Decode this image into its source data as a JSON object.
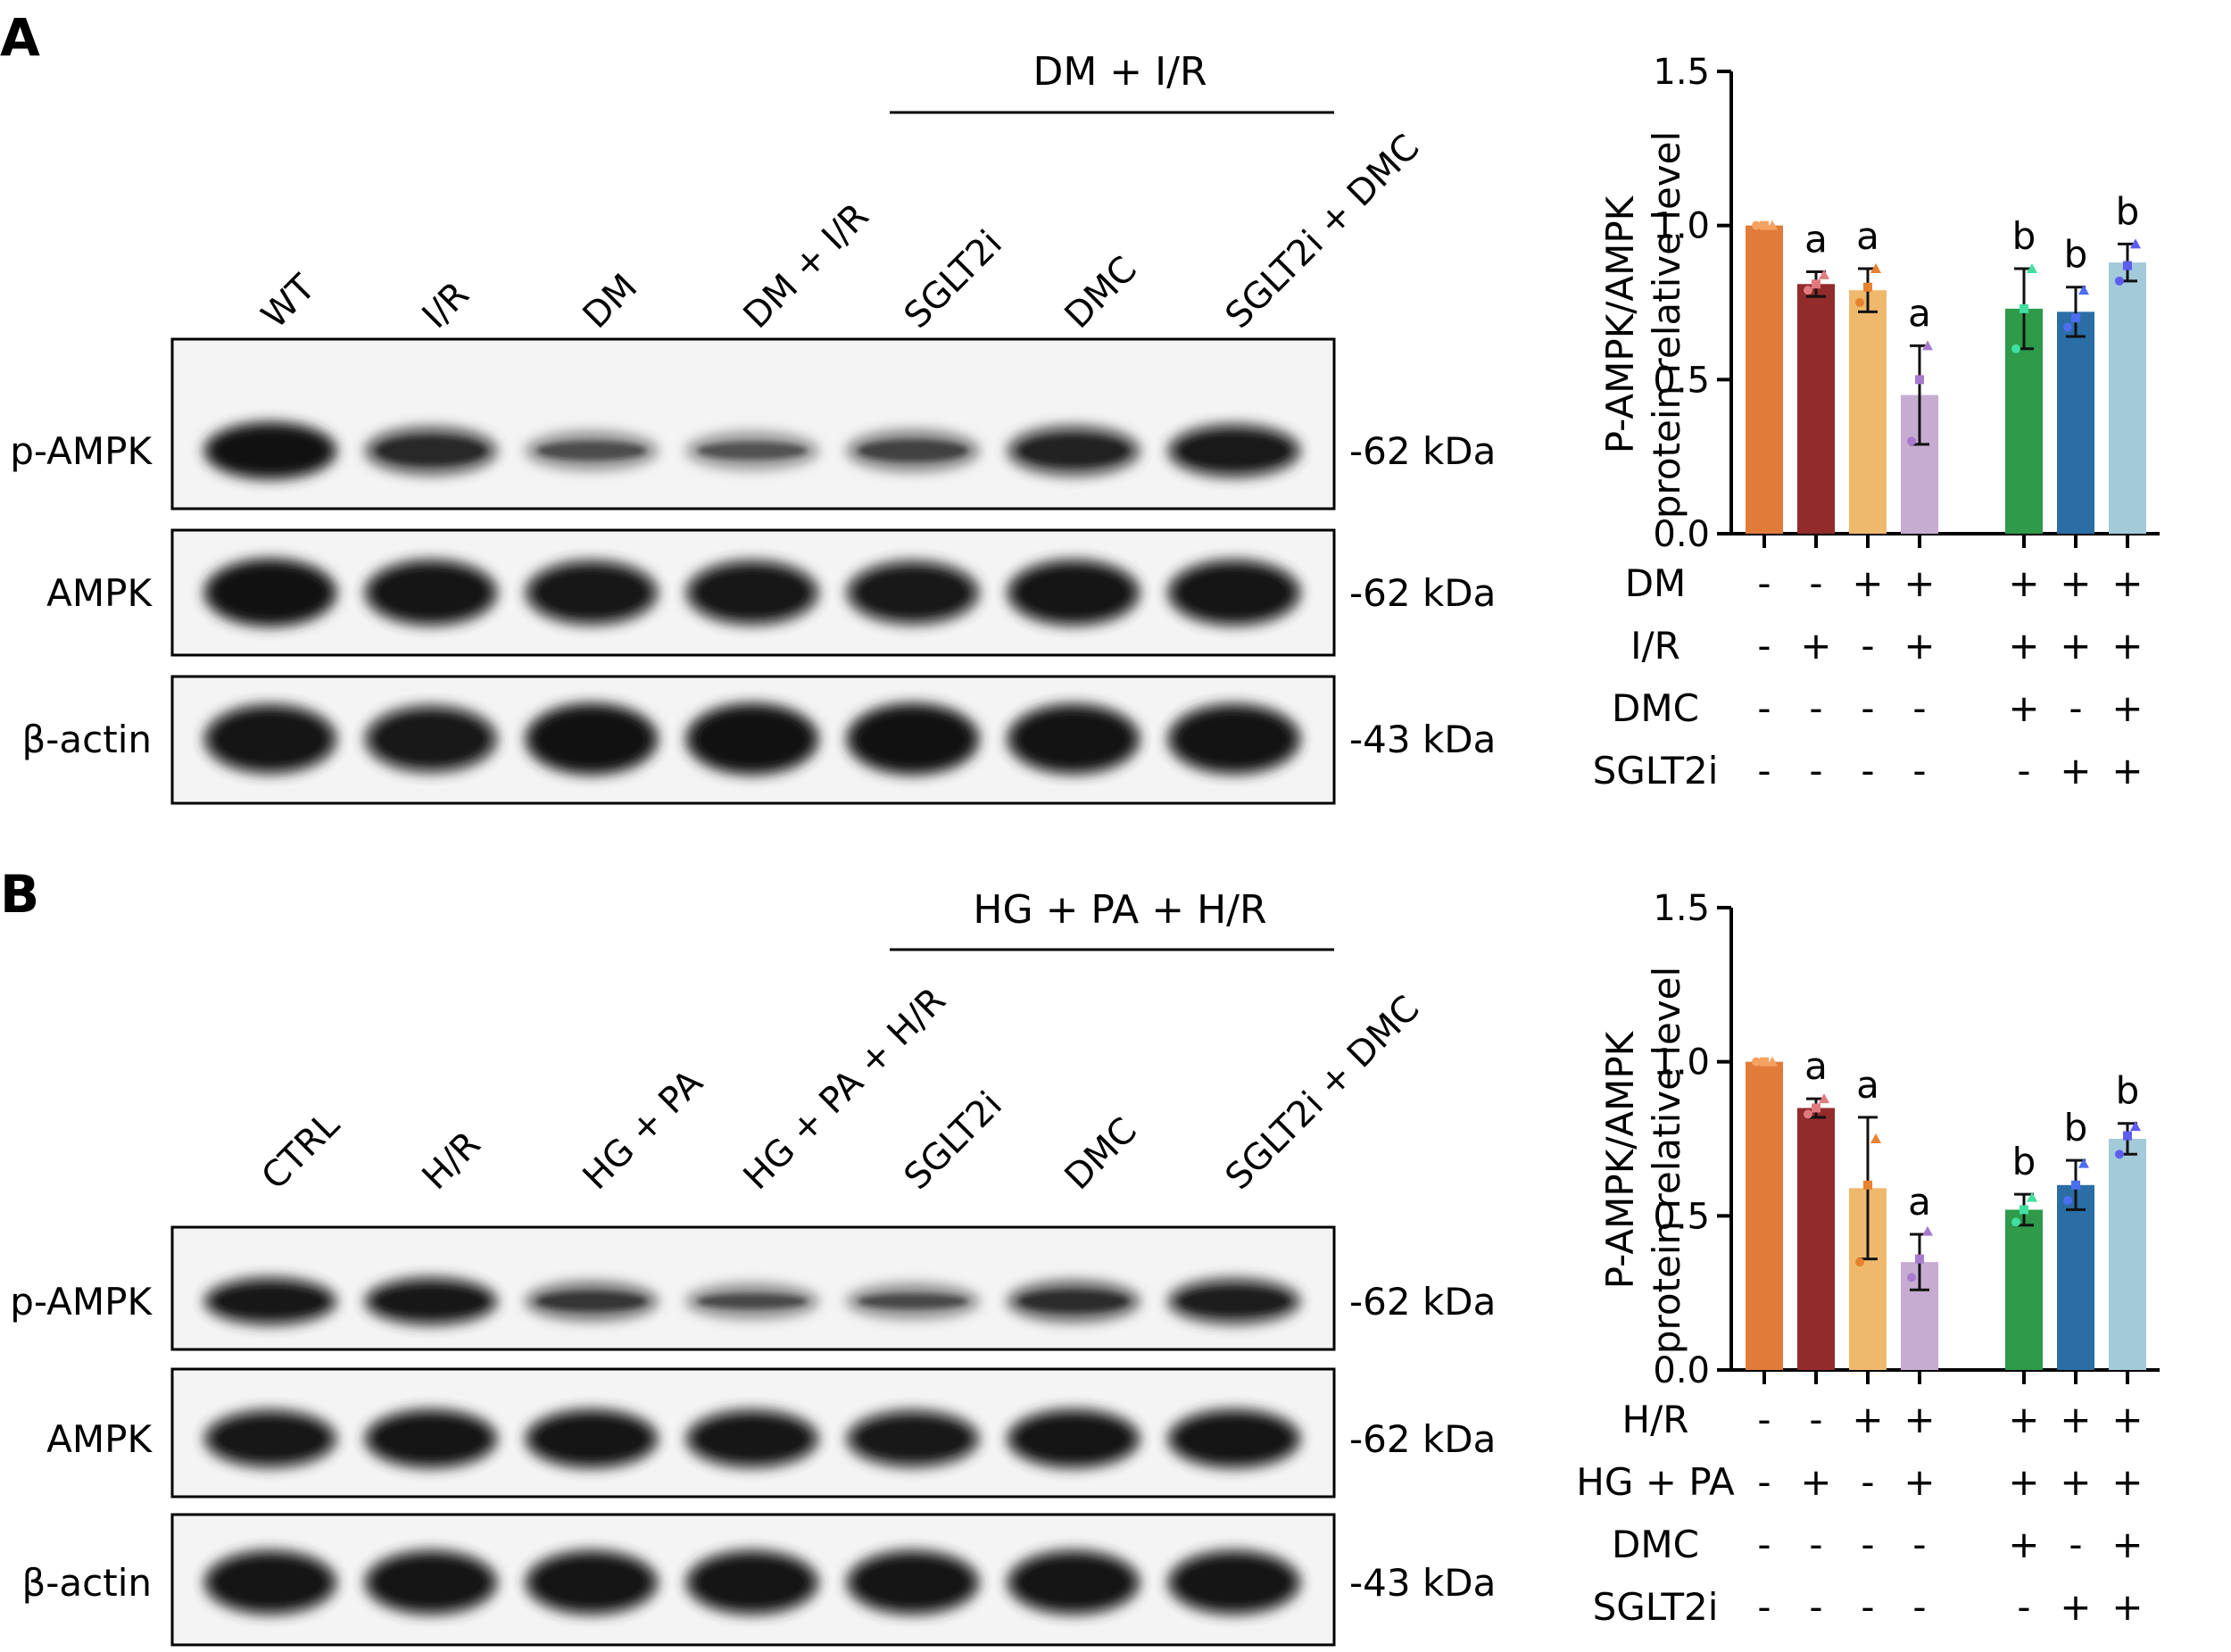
{
  "panels": [
    {
      "letter": "A",
      "group_label": "DM + I/R",
      "lanes": [
        "WT",
        "I/R",
        "DM",
        "DM + I/R",
        "SGLT2i",
        "DMC",
        "SGLT2i + DMC"
      ],
      "blots": [
        {
          "name": "p-AMPK",
          "kda": "-62 kDa",
          "intensity": [
            1.0,
            0.72,
            0.42,
            0.38,
            0.5,
            0.78,
            0.88
          ]
        },
        {
          "name": "AMPK",
          "kda": "-62 kDa",
          "intensity": [
            1.0,
            0.95,
            0.92,
            0.92,
            0.9,
            0.95,
            0.95
          ]
        },
        {
          "name": "β-actin",
          "kda": "-43 kDa",
          "intensity": [
            0.95,
            0.9,
            1.0,
            1.0,
            1.0,
            0.97,
            0.97
          ]
        }
      ],
      "chart_data": {
        "type": "bar",
        "ylabel_line1": "P-AMPK/AMPK",
        "ylabel_line2": "protein relative level",
        "ylim": [
          0,
          1.5
        ],
        "yticks": [
          "0.0",
          "0.5",
          "1.0",
          "1.5"
        ],
        "values": [
          1.0,
          0.81,
          0.79,
          0.45,
          0.73,
          0.72,
          0.88
        ],
        "errors": [
          0.0,
          0.04,
          0.07,
          0.16,
          0.13,
          0.08,
          0.06
        ],
        "letters": [
          "",
          "a",
          "a",
          "a",
          "b",
          "b",
          "b"
        ],
        "points": [
          [
            1.0,
            1.0,
            1.0
          ],
          [
            0.79,
            0.81,
            0.84
          ],
          [
            0.75,
            0.8,
            0.86
          ],
          [
            0.3,
            0.5,
            0.61
          ],
          [
            0.6,
            0.73,
            0.86
          ],
          [
            0.67,
            0.7,
            0.79
          ],
          [
            0.82,
            0.87,
            0.94
          ]
        ],
        "colors": [
          "#e07b39",
          "#922b2b",
          "#efb96d",
          "#c7acd1",
          "#2e9a4a",
          "#2a6ea5",
          "#a3cad9"
        ],
        "point_colors": [
          "#f5a261",
          "#e07a7f",
          "#e8822f",
          "#a77ad0",
          "#40e0a0",
          "#4b6ef2",
          "#5d5df0"
        ],
        "conditions": [
          {
            "label": "DM",
            "signs": [
              "-",
              "-",
              "+",
              "+",
              "+",
              "+",
              "+"
            ]
          },
          {
            "label": "I/R",
            "signs": [
              "-",
              "+",
              "-",
              "+",
              "+",
              "+",
              "+"
            ]
          },
          {
            "label": "DMC",
            "signs": [
              "-",
              "-",
              "-",
              "-",
              "+",
              "-",
              "+"
            ]
          },
          {
            "label": "SGLT2i",
            "signs": [
              "-",
              "-",
              "-",
              "-",
              "-",
              "+",
              "+"
            ]
          }
        ]
      }
    },
    {
      "letter": "B",
      "group_label": "HG + PA + H/R",
      "lanes": [
        "CTRL",
        "H/R",
        "HG + PA",
        "HG + PA + H/R",
        "SGLT2i",
        "DMC",
        "SGLT2i + DMC"
      ],
      "blots": [
        {
          "name": "p-AMPK",
          "kda": "-62 kDa",
          "intensity": [
            0.92,
            0.92,
            0.6,
            0.45,
            0.45,
            0.68,
            0.85
          ]
        },
        {
          "name": "AMPK",
          "kda": "-62 kDa",
          "intensity": [
            0.92,
            0.95,
            0.95,
            0.93,
            0.9,
            0.95,
            0.95
          ]
        },
        {
          "name": "β-actin",
          "kda": "-43 kDa",
          "intensity": [
            0.95,
            0.95,
            0.95,
            0.95,
            0.95,
            0.95,
            0.95
          ]
        }
      ],
      "chart_data": {
        "type": "bar",
        "ylabel_line1": "P-AMPK/AMPK",
        "ylabel_line2": "protein relative level",
        "ylim": [
          0,
          1.5
        ],
        "yticks": [
          "0.0",
          "0.5",
          "1.0",
          "1.5"
        ],
        "values": [
          1.0,
          0.85,
          0.59,
          0.35,
          0.52,
          0.6,
          0.75
        ],
        "errors": [
          0.0,
          0.03,
          0.23,
          0.09,
          0.05,
          0.08,
          0.05
        ],
        "letters": [
          "",
          "a",
          "a",
          "a",
          "b",
          "b",
          "b"
        ],
        "points": [
          [
            1.0,
            1.0,
            1.0
          ],
          [
            0.83,
            0.85,
            0.88
          ],
          [
            0.35,
            0.6,
            0.75
          ],
          [
            0.3,
            0.36,
            0.45
          ],
          [
            0.48,
            0.52,
            0.56
          ],
          [
            0.55,
            0.6,
            0.67
          ],
          [
            0.7,
            0.76,
            0.79
          ]
        ],
        "colors": [
          "#e07b39",
          "#922b2b",
          "#efb96d",
          "#c7acd1",
          "#2e9a4a",
          "#2a6ea5",
          "#a3cad9"
        ],
        "point_colors": [
          "#f5a261",
          "#e07a7f",
          "#e8822f",
          "#a77ad0",
          "#40e0a0",
          "#4b6ef2",
          "#5d5df0"
        ],
        "conditions": [
          {
            "label": "H/R",
            "signs": [
              "-",
              "-",
              "+",
              "+",
              "+",
              "+",
              "+"
            ]
          },
          {
            "label": "HG + PA",
            "signs": [
              "-",
              "+",
              "-",
              "+",
              "+",
              "+",
              "+"
            ]
          },
          {
            "label": "DMC",
            "signs": [
              "-",
              "-",
              "-",
              "-",
              "+",
              "-",
              "+"
            ]
          },
          {
            "label": "SGLT2i",
            "signs": [
              "-",
              "-",
              "-",
              "-",
              "-",
              "+",
              "+"
            ]
          }
        ]
      }
    }
  ]
}
